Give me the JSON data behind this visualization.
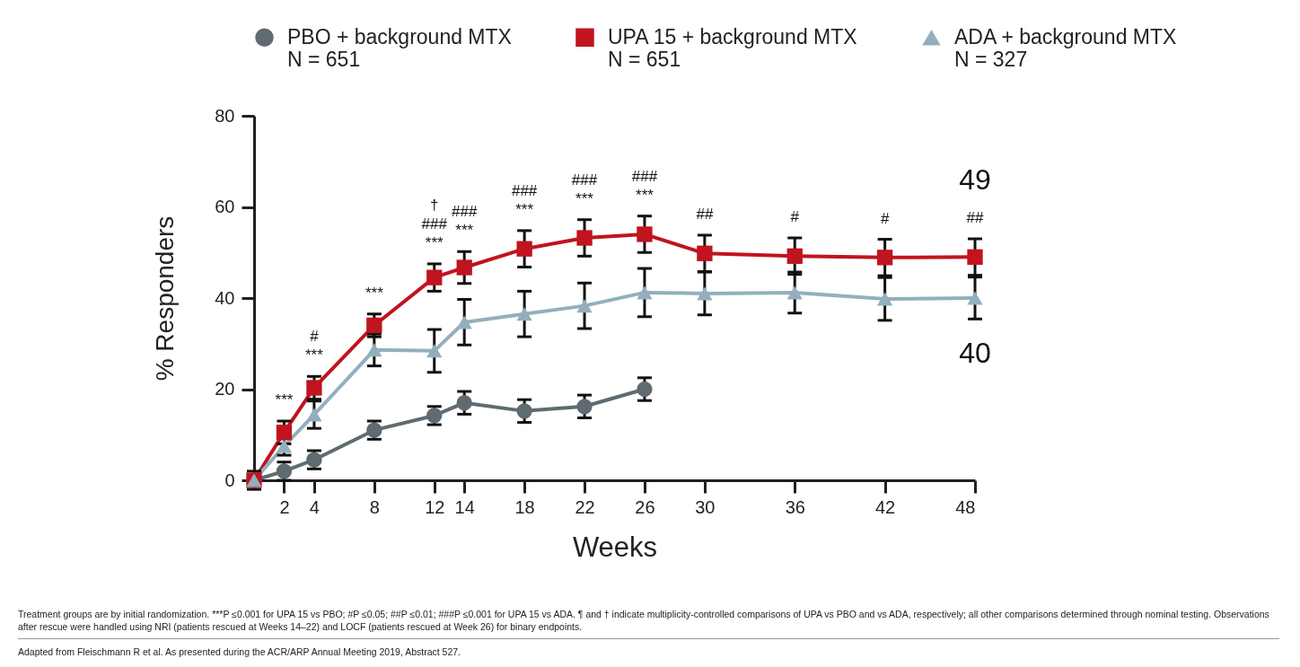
{
  "chart_data": {
    "type": "line",
    "xlabel": "Weeks",
    "ylabel": "% Responders",
    "x": [
      0,
      2,
      4,
      8,
      12,
      14,
      18,
      22,
      26,
      30,
      36,
      42,
      48
    ],
    "xlim": [
      0,
      48
    ],
    "xticks": [
      2,
      4,
      8,
      12,
      14,
      18,
      22,
      26,
      30,
      36,
      42,
      48
    ],
    "ylim": [
      0,
      80
    ],
    "yticks": [
      0,
      20,
      40,
      60,
      80
    ],
    "grid": false,
    "legend": "top",
    "line_style": "solid",
    "series": [
      {
        "name": "PBO + background MTX\nN = 651",
        "color": "#5f6b70",
        "marker": "circle",
        "x": [
          0,
          2,
          4,
          8,
          12,
          14,
          18,
          22,
          26
        ],
        "values": [
          0,
          2,
          4.5,
          11,
          14.2,
          17,
          15.2,
          16.2,
          20
        ],
        "errors": [
          2,
          2,
          2,
          2,
          2,
          2.5,
          2.5,
          2.5,
          2.5
        ]
      },
      {
        "name": "UPA 15 + background MTX\nN = 651",
        "color": "#c0141f",
        "marker": "square",
        "values": [
          0,
          10.5,
          20.3,
          34,
          44.5,
          46.7,
          50.8,
          53.2,
          54,
          49.8,
          49.2,
          48.9,
          49
        ],
        "errors": [
          null,
          2.5,
          2.5,
          2.5,
          3,
          3.5,
          4,
          4,
          4,
          4,
          4,
          4,
          4
        ],
        "value_labels": [
          null,
          null,
          null,
          null,
          null,
          null,
          null,
          null,
          null,
          null,
          null,
          null,
          "49"
        ]
      },
      {
        "name": "ADA + background MTX\nN = 327",
        "color": "#93afbd",
        "marker": "triangle",
        "values": [
          0,
          7.5,
          14.4,
          28.6,
          28.4,
          34.7,
          36.5,
          38.3,
          41.2,
          41,
          41.2,
          39.8,
          40
        ],
        "errors": [
          null,
          2,
          3,
          3.5,
          4.7,
          5,
          5,
          5,
          5.3,
          4.7,
          4.5,
          4.7,
          4.6
        ],
        "value_labels": [
          null,
          null,
          null,
          null,
          null,
          null,
          null,
          null,
          null,
          null,
          null,
          null,
          "40"
        ]
      }
    ],
    "annotations": [
      {
        "text": "***",
        "x": 2,
        "y": 10.5
      },
      {
        "text": "#\n***",
        "x": 4,
        "y": 20.3
      },
      {
        "text": "***",
        "x": 8,
        "y": 34
      },
      {
        "text": "†\n###\n***",
        "x": 12,
        "y": 44.5
      },
      {
        "text": "###\n***",
        "x": 14,
        "y": 46.7
      },
      {
        "text": "###\n***",
        "x": 18,
        "y": 50.8
      },
      {
        "text": "###\n***",
        "x": 22,
        "y": 53.2
      },
      {
        "text": "###\n***",
        "x": 26,
        "y": 54
      },
      {
        "text": "##",
        "x": 30,
        "y": 49.8
      },
      {
        "text": "#",
        "x": 36,
        "y": 49.2
      },
      {
        "text": "#",
        "x": 42,
        "y": 48.9
      },
      {
        "text": "##",
        "x": 48,
        "y": 49
      },
      "Treatment groups are by initial randomization. ***P ≤0.001 for UPA 15 vs PBO; #P ≤0.05; ##P ≤0.01; ###P ≤0.001 for UPA 15 vs ADA. ¶ and † indicate multiplicity-controlled comparisons of UPA vs PBO and vs ADA, respectively; all other comparisons determined through nominal testing. Observations after rescue were handled using NRI (patients rescued at Weeks 14–22) and LOCF (patients rescued at Week 26) for binary endpoints.",
      "Adapted from Fleischmann R et al. As presented during the ACR/ARP Annual Meeting 2019, Abstract 527."
    ]
  }
}
